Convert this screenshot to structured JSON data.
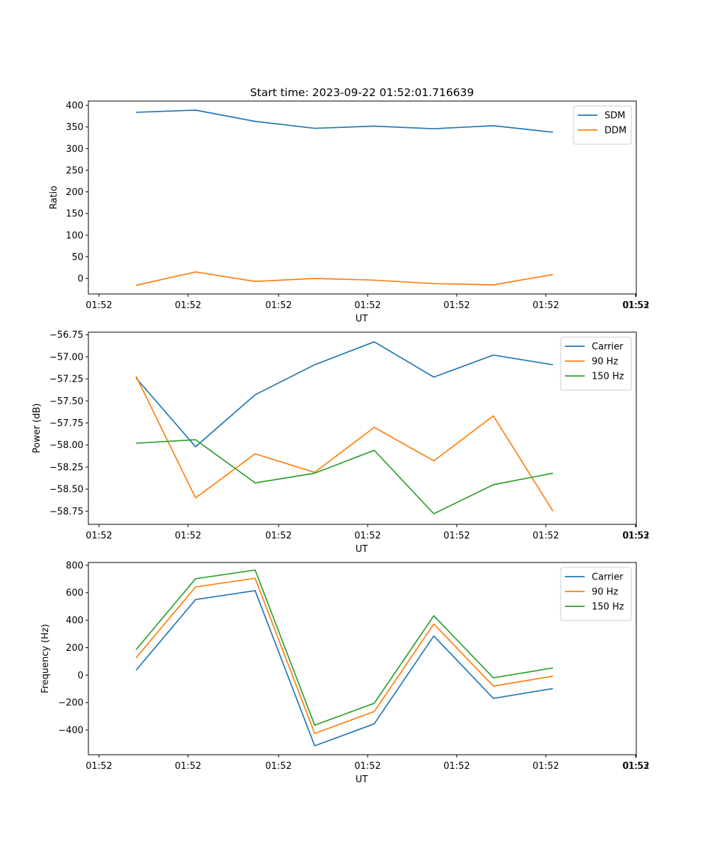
{
  "figure": {
    "title": "Start time: 2023-09-22 01:52:01.716639"
  },
  "chart_data": [
    {
      "type": "line",
      "xlabel": "UT",
      "ylabel": "Ratio",
      "x_tick_labels": [
        "01:52",
        "01:52",
        "01:52",
        "01:52",
        "01:52",
        "01:52",
        "01:52"
      ],
      "x_tick_end_label": "01:53",
      "x_points": [
        1,
        2,
        3,
        4,
        5,
        6,
        7,
        8
      ],
      "xlim": [
        0.2,
        9.4
      ],
      "ylim": [
        -36,
        410
      ],
      "yticks": [
        0,
        50,
        100,
        150,
        200,
        250,
        300,
        350,
        400
      ],
      "ytick_labels": [
        "0",
        "50",
        "100",
        "150",
        "200",
        "250",
        "300",
        "350",
        "400"
      ],
      "legend_position": "upper right",
      "series": [
        {
          "name": "SDM",
          "color": "#1f77b4",
          "values": [
            384,
            389,
            363,
            347,
            352,
            346,
            353,
            338
          ]
        },
        {
          "name": "DDM",
          "color": "#ff7f0e",
          "values": [
            -16,
            15,
            -7,
            0,
            -4,
            -12,
            -15,
            9
          ]
        }
      ]
    },
    {
      "type": "line",
      "xlabel": "UT",
      "ylabel": "Power (dB)",
      "x_tick_labels": [
        "01:52",
        "01:52",
        "01:52",
        "01:52",
        "01:52",
        "01:52",
        "01:52"
      ],
      "x_tick_end_label": "01:53",
      "x_points": [
        1,
        2,
        3,
        4,
        5,
        6,
        7,
        8
      ],
      "xlim": [
        0.2,
        9.4
      ],
      "ylim": [
        -58.9,
        -56.72
      ],
      "yticks": [
        -58.75,
        -58.5,
        -58.25,
        -58.0,
        -57.75,
        -57.5,
        -57.25,
        -57.0,
        -56.75
      ],
      "ytick_labels": [
        "−58.75",
        "−58.50",
        "−58.25",
        "−58.00",
        "−57.75",
        "−57.50",
        "−57.25",
        "−57.00",
        "−56.75"
      ],
      "legend_position": "upper right",
      "series": [
        {
          "name": "Carrier",
          "color": "#1f77b4",
          "values": [
            -57.24,
            -58.02,
            -57.43,
            -57.09,
            -56.83,
            -57.23,
            -56.98,
            -57.09
          ]
        },
        {
          "name": "90 Hz",
          "color": "#ff7f0e",
          "values": [
            -57.22,
            -58.6,
            -58.1,
            -58.31,
            -57.8,
            -58.18,
            -57.67,
            -58.75
          ]
        },
        {
          "name": "150 Hz",
          "color": "#2ca02c",
          "values": [
            -57.98,
            -57.94,
            -58.43,
            -58.32,
            -58.06,
            -58.78,
            -58.45,
            -58.32
          ]
        }
      ]
    },
    {
      "type": "line",
      "xlabel": "UT",
      "ylabel": "Frequency (Hz)",
      "x_tick_labels": [
        "01:52",
        "01:52",
        "01:52",
        "01:52",
        "01:52",
        "01:52",
        "01:52"
      ],
      "x_tick_end_label": "01:53",
      "x_points": [
        1,
        2,
        3,
        4,
        5,
        6,
        7,
        8
      ],
      "xlim": [
        0.2,
        9.4
      ],
      "ylim": [
        -580,
        820
      ],
      "yticks": [
        -400,
        -200,
        0,
        200,
        400,
        600,
        800
      ],
      "ytick_labels": [
        "−400",
        "−200",
        "0",
        "200",
        "400",
        "600",
        "800"
      ],
      "legend_position": "upper right",
      "series": [
        {
          "name": "Carrier",
          "color": "#1f77b4",
          "values": [
            35,
            550,
            615,
            -515,
            -355,
            285,
            -170,
            -98
          ]
        },
        {
          "name": "90 Hz",
          "color": "#ff7f0e",
          "values": [
            125,
            642,
            705,
            -425,
            -265,
            372,
            -80,
            -8
          ]
        },
        {
          "name": "150 Hz",
          "color": "#2ca02c",
          "values": [
            185,
            702,
            765,
            -365,
            -205,
            432,
            -20,
            52
          ]
        }
      ]
    }
  ]
}
